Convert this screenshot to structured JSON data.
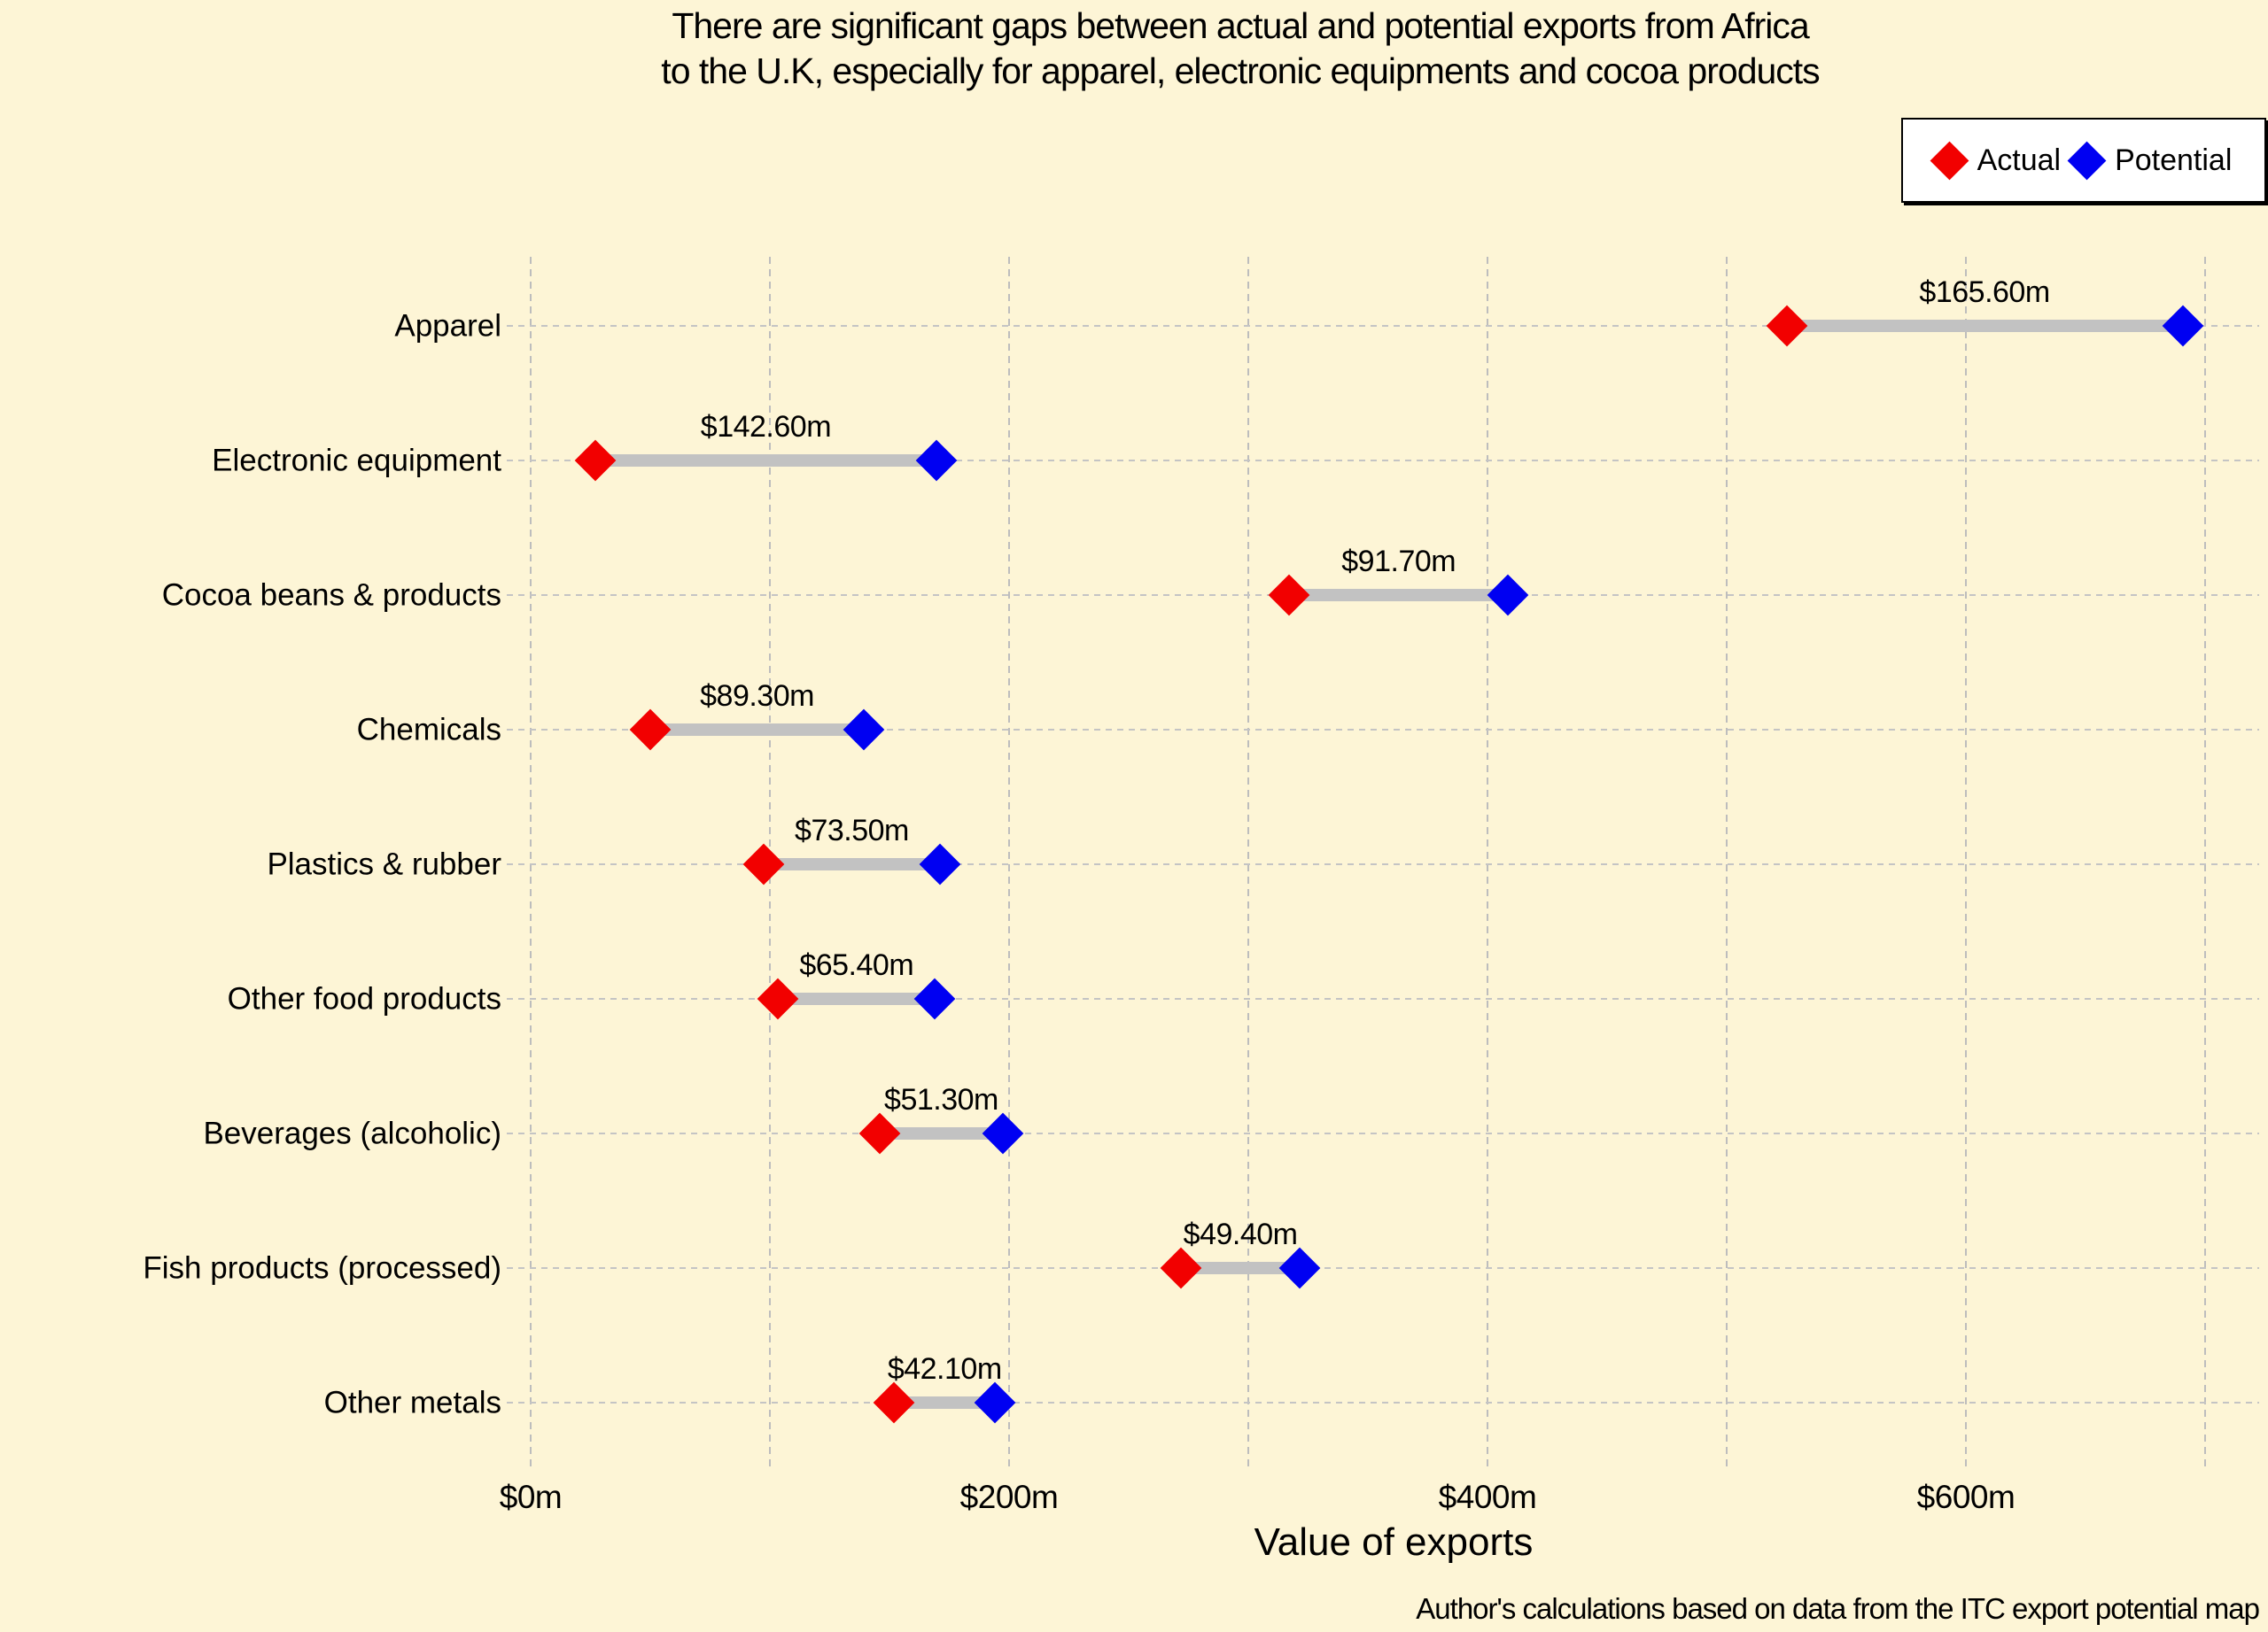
{
  "chart_data": {
    "type": "scatter",
    "subtype": "dumbbell",
    "title_line1": "There are significant gaps between actual and potential exports from Africa",
    "title_line2": "to the U.K, especially for apparel, electronic equipments and cocoa products",
    "categories": [
      "Apparel",
      "Electronic equipment",
      "Cocoa beans & products",
      "Chemicals",
      "Plastics & rubber",
      "Other food products",
      "Beverages (alcoholic)",
      "Fish products (processed)",
      "Other metals"
    ],
    "series": [
      {
        "name": "Actual",
        "color": "#F20000",
        "values": [
          525.0,
          27.0,
          317.0,
          50.0,
          97.5,
          103.5,
          146.0,
          272.0,
          152.0
        ]
      },
      {
        "name": "Potential",
        "color": "#0000F2",
        "values": [
          690.6,
          169.6,
          408.7,
          139.3,
          171.0,
          168.9,
          197.3,
          321.4,
          194.1
        ]
      }
    ],
    "gap_labels": [
      "$165.60m",
      "$142.60m",
      "$91.70m",
      "$89.30m",
      "$73.50m",
      "$65.40m",
      "$51.30m",
      "$49.40m",
      "$42.10m"
    ],
    "xlabel": "Value of exports",
    "x_ticks": [
      {
        "value": 0,
        "label": "$0m"
      },
      {
        "value": 200,
        "label": "$200m"
      },
      {
        "value": 400,
        "label": "$400m"
      },
      {
        "value": 600,
        "label": "$600m"
      }
    ],
    "xlim": [
      0,
      700
    ],
    "gridline_values": [
      0,
      100,
      200,
      300,
      400,
      500,
      600,
      700
    ],
    "grid": "on",
    "legend": {
      "position": "top-right",
      "entries": [
        {
          "label": "Actual",
          "color": "#F20000"
        },
        {
          "label": "Potential",
          "color": "#0000F2"
        }
      ]
    },
    "source_note": "Author's calculations based on data from the ITC export potential map",
    "background_color": "#FDF5D6",
    "connector_color": "#C2C2C2",
    "grid_color": "#C4C4C4"
  }
}
